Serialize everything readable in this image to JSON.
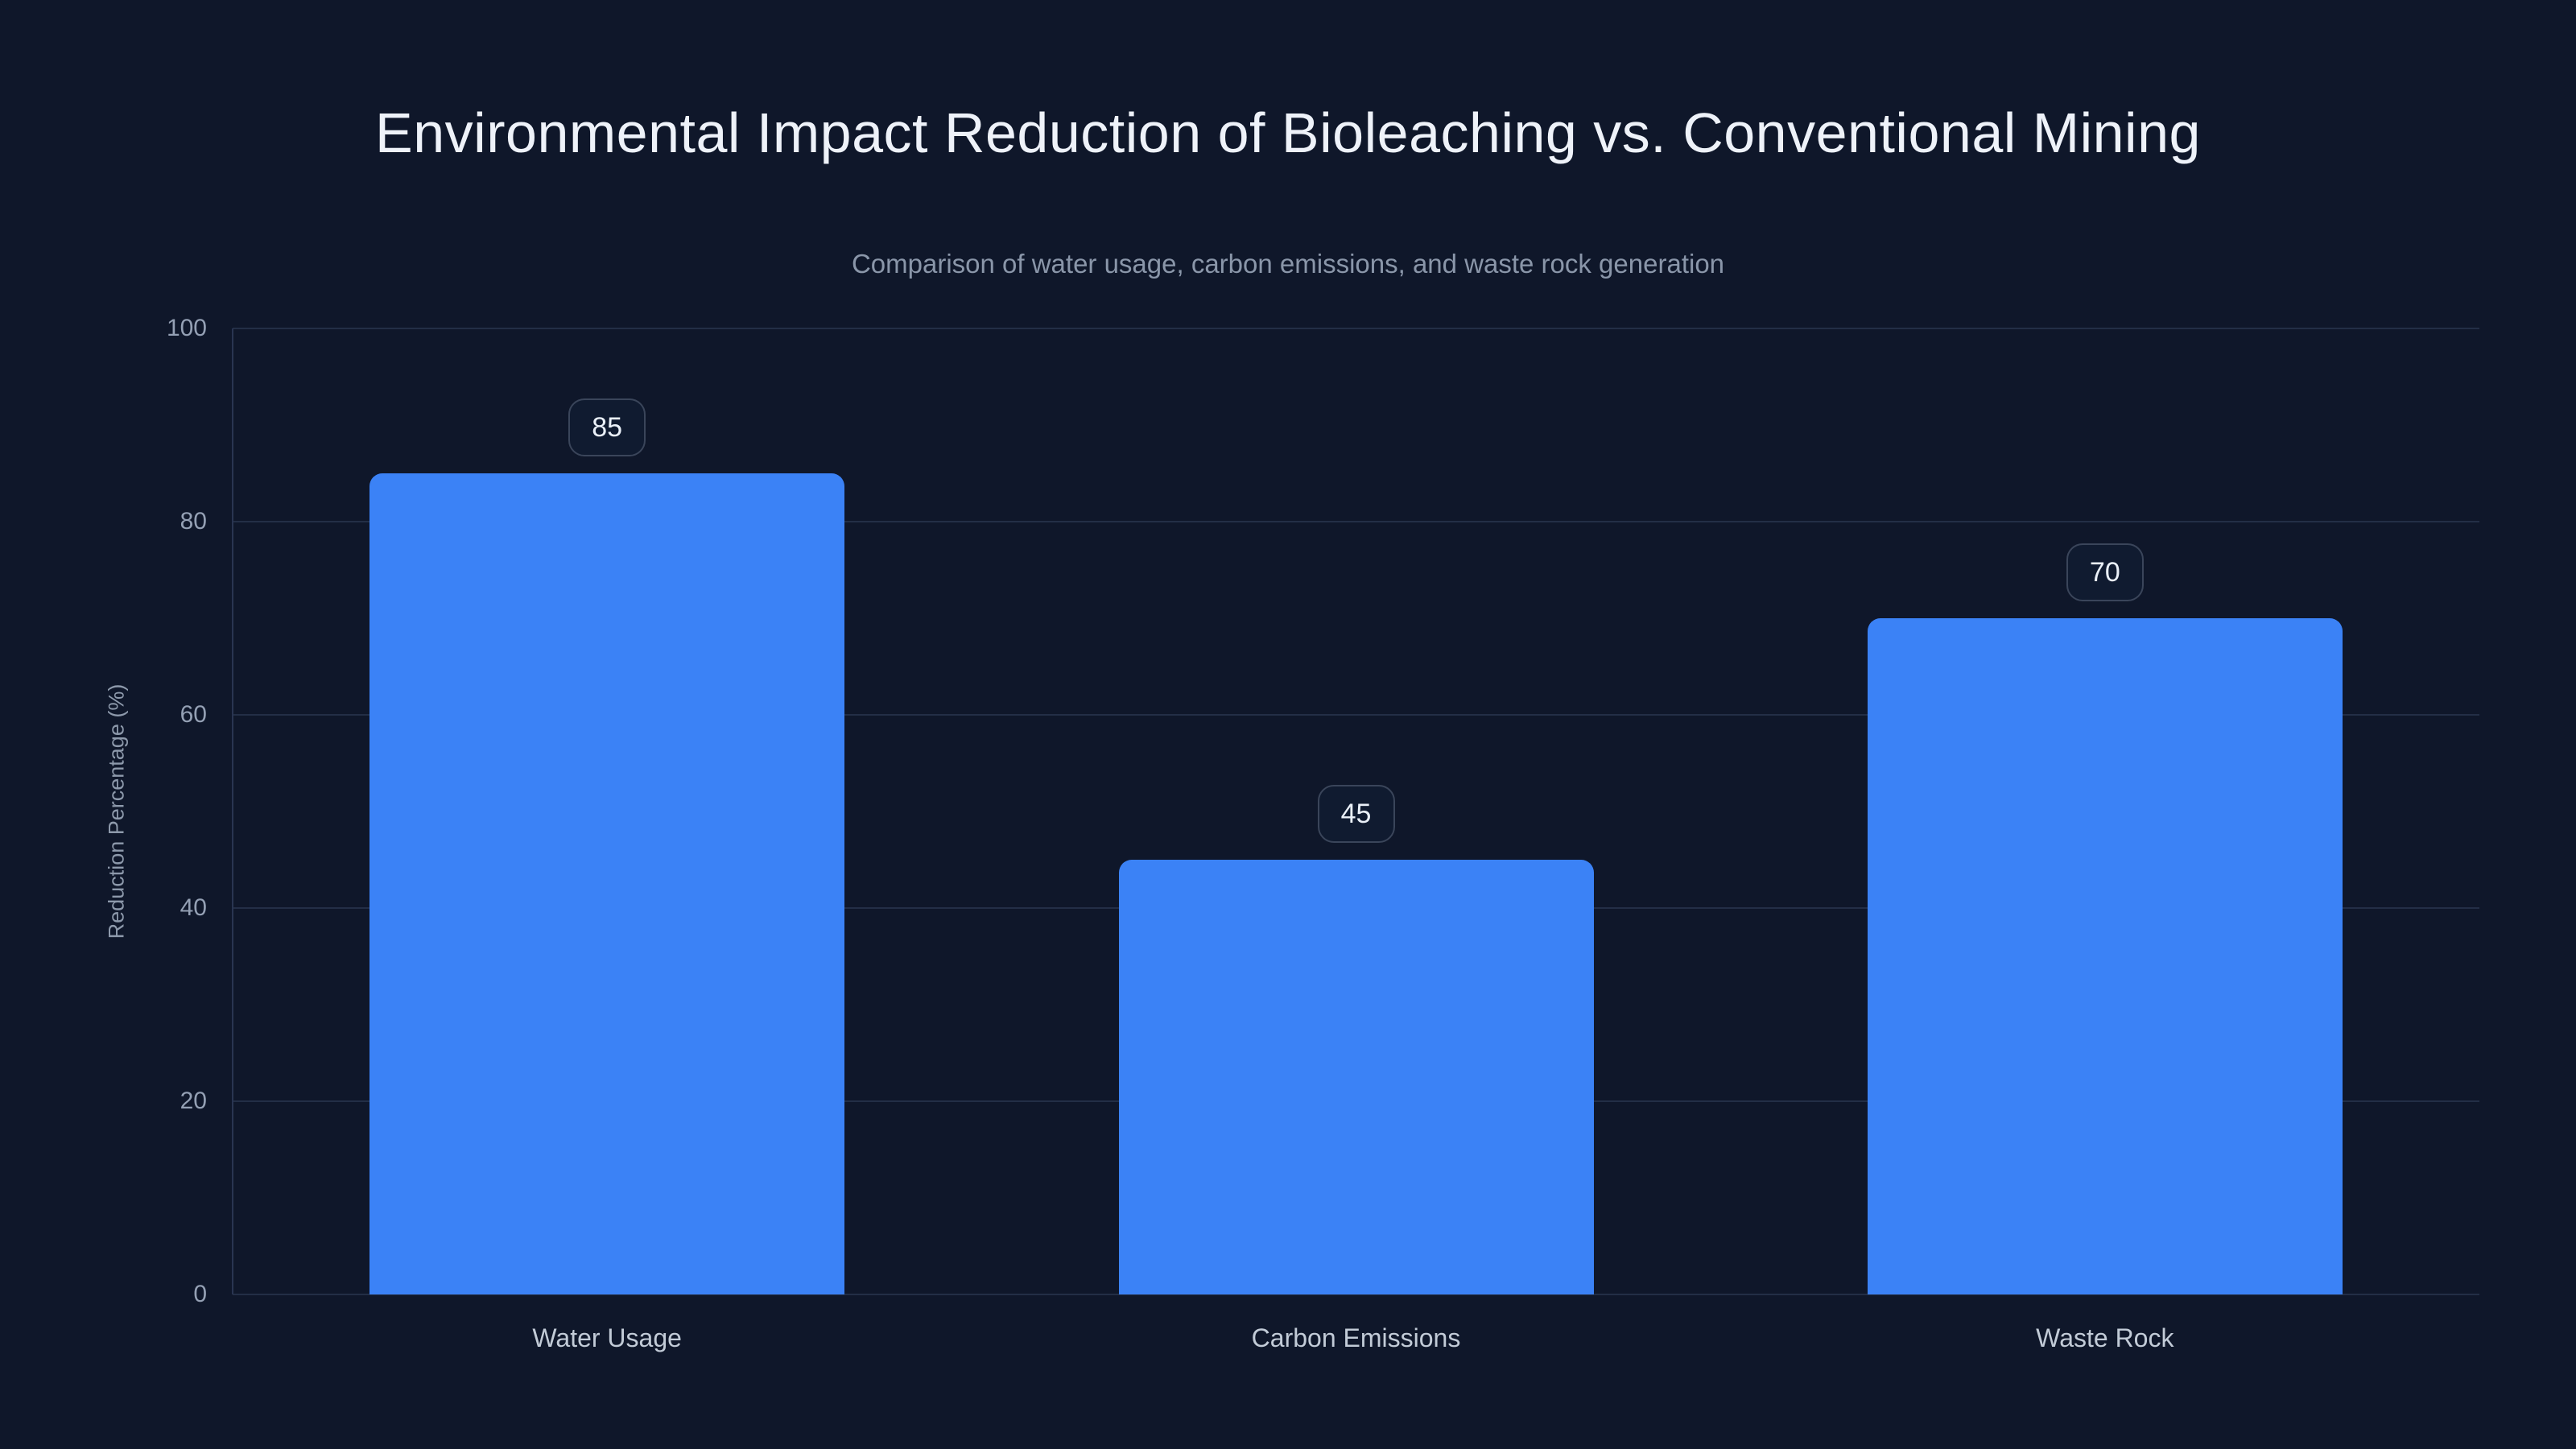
{
  "chart_data": {
    "type": "bar",
    "title": "Environmental Impact Reduction of Bioleaching vs. Conventional Mining",
    "subtitle": "Comparison of water usage, carbon emissions, and waste rock generation",
    "categories": [
      "Water Usage",
      "Carbon Emissions",
      "Waste Rock"
    ],
    "values": [
      85,
      45,
      70
    ],
    "data_labels": [
      "85",
      "45",
      "70"
    ],
    "xlabel": "",
    "ylabel": "Reduction Percentage (%)",
    "ylim": [
      0,
      100
    ],
    "yticks": [
      0,
      20,
      40,
      60,
      80,
      100
    ],
    "grid": "horizontal",
    "legend_position": "none",
    "colors": {
      "background": "#0f172a",
      "bar": "#3b82f6",
      "title_text": "#eef2f9",
      "subtitle_text": "#8a96a9",
      "tick_text": "#94a0b4",
      "category_text": "#c2cbd7",
      "axis_title_text": "#8d99ab",
      "gridline": "#232e46",
      "axis_line": "#293551",
      "badge_background": "#101b30",
      "badge_border": "#3a455a",
      "badge_text": "#eaf0f8"
    }
  }
}
